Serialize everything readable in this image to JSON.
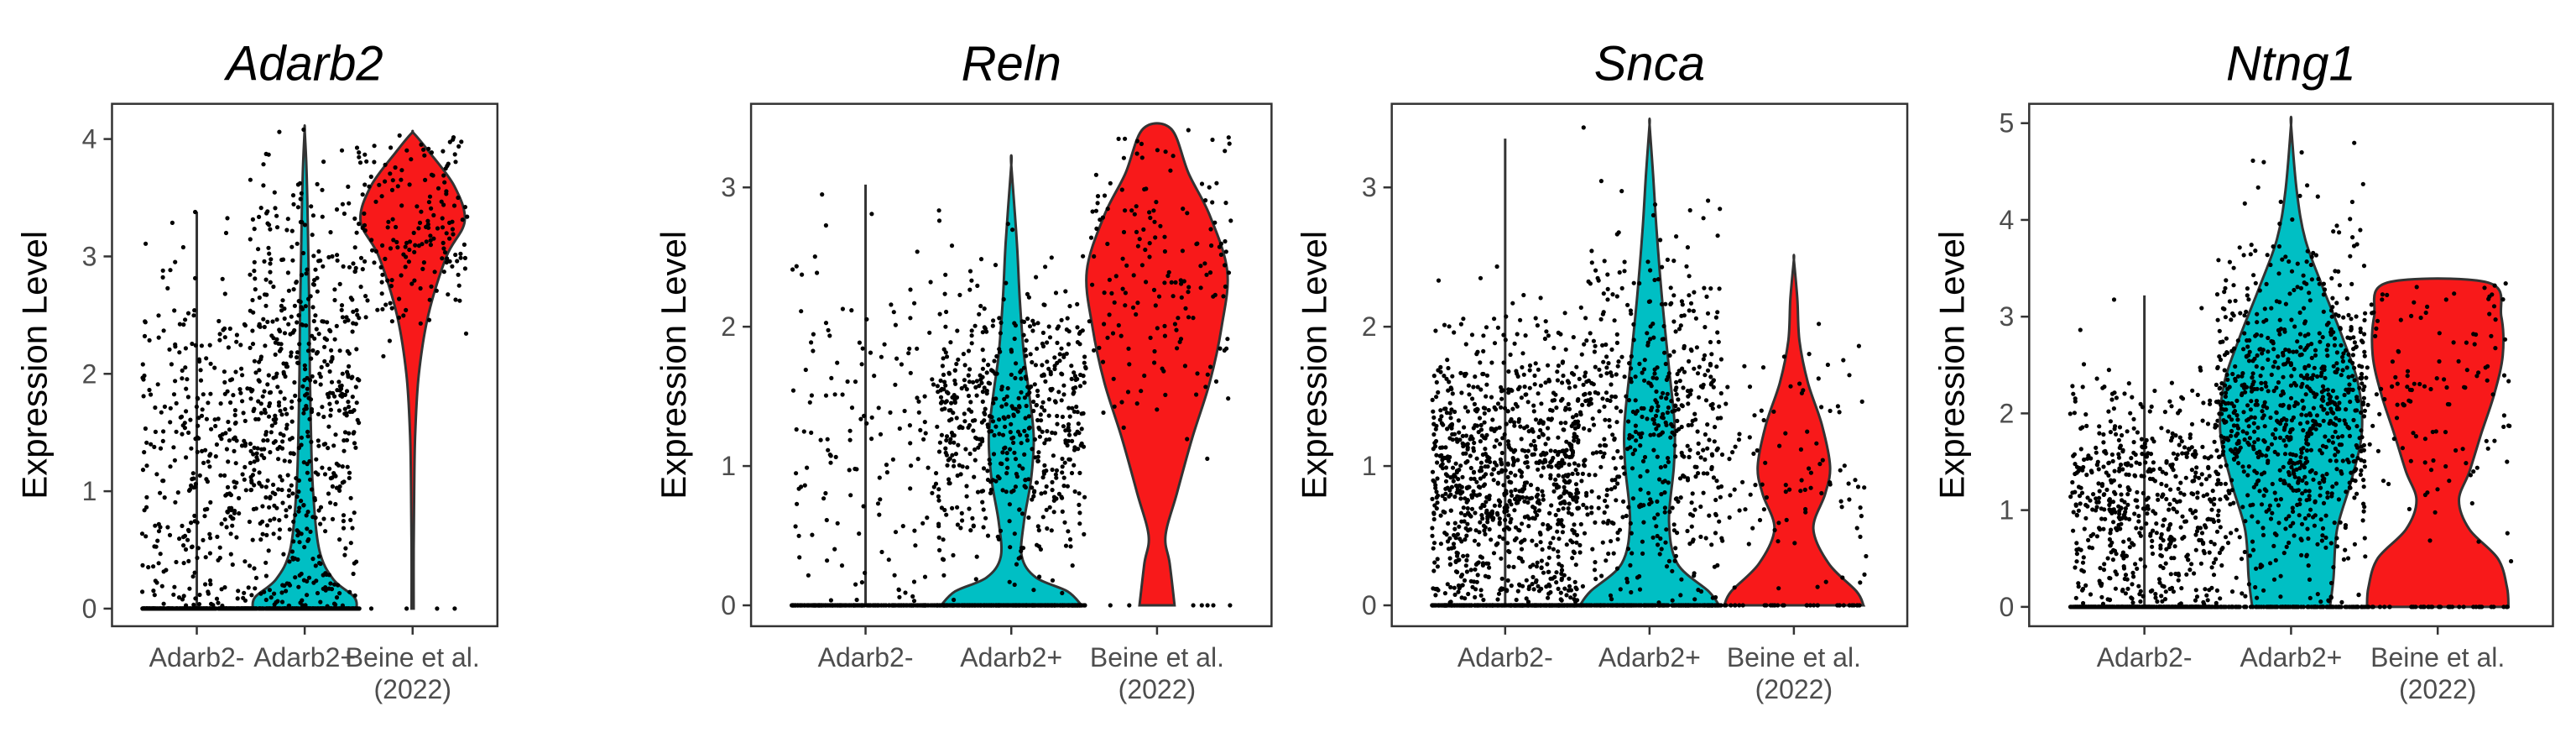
{
  "chart_data": [
    {
      "type": "violin",
      "title": "Adarb2",
      "ylabel": "Expression Level",
      "categories": [
        "Adarb2-",
        "Adarb2+",
        "Beine et al.\n(2022)"
      ],
      "ylim": [
        -0.15,
        4.3
      ],
      "yticks": [
        0,
        1,
        2,
        3,
        4
      ],
      "groups": [
        {
          "name": "Adarb2-",
          "color": null,
          "max": 3.38,
          "density_profile": [
            [
              0,
              0
            ],
            [
              0.1,
              0.02
            ],
            [
              0.3,
              0.04
            ],
            [
              0.8,
              0.03
            ],
            [
              1.5,
              0.02
            ],
            [
              2.5,
              0.01
            ],
            [
              3.38,
              0
            ]
          ],
          "zero_fraction": 0.55,
          "points": 700,
          "mean_nonzero": 1.3,
          "sd_nonzero": 0.8
        },
        {
          "name": "Adarb2+",
          "color": "#00BFC4",
          "max": 4.08,
          "density_profile": [
            [
              0,
              1.0
            ],
            [
              0.1,
              0.95
            ],
            [
              0.25,
              0.55
            ],
            [
              0.5,
              0.28
            ],
            [
              1.0,
              0.16
            ],
            [
              1.5,
              0.12
            ],
            [
              2.0,
              0.1
            ],
            [
              2.5,
              0.09
            ],
            [
              3.0,
              0.07
            ],
            [
              3.5,
              0.05
            ],
            [
              3.8,
              0.03
            ],
            [
              4.08,
              0
            ]
          ],
          "zero_fraction": 0.35,
          "points": 900,
          "mean_nonzero": 1.7,
          "sd_nonzero": 1.0
        },
        {
          "name": "Beine et al. (2022)",
          "color": "#F8191A",
          "max": 4.05,
          "density_profile": [
            [
              0,
              0.02
            ],
            [
              0.5,
              0.02
            ],
            [
              1.0,
              0.03
            ],
            [
              1.5,
              0.05
            ],
            [
              2.0,
              0.12
            ],
            [
              2.5,
              0.3
            ],
            [
              3.0,
              0.65
            ],
            [
              3.3,
              1.0
            ],
            [
              3.6,
              0.8
            ],
            [
              3.9,
              0.3
            ],
            [
              4.05,
              0.02
            ]
          ],
          "zero_fraction": 0.02,
          "points": 180,
          "mean_nonzero": 3.2,
          "sd_nonzero": 0.5
        }
      ]
    },
    {
      "type": "violin",
      "title": "Reln",
      "ylabel": "Expression Level",
      "categories": [
        "Adarb2-",
        "Adarb2+",
        "Beine et al.\n(2022)"
      ],
      "ylim": [
        -0.15,
        3.6
      ],
      "yticks": [
        0,
        1,
        2,
        3
      ],
      "groups": [
        {
          "name": "Adarb2-",
          "color": null,
          "max": 3.02,
          "density_profile": [
            [
              0,
              0
            ],
            [
              0.1,
              0.02
            ],
            [
              0.5,
              0.03
            ],
            [
              1.0,
              0.03
            ],
            [
              2.0,
              0.02
            ],
            [
              3.02,
              0
            ]
          ],
          "zero_fraction": 0.6,
          "points": 400,
          "mean_nonzero": 1.2,
          "sd_nonzero": 0.7
        },
        {
          "name": "Adarb2+",
          "color": "#00BFC4",
          "max": 3.16,
          "density_profile": [
            [
              0,
              1.0
            ],
            [
              0.1,
              0.8
            ],
            [
              0.2,
              0.35
            ],
            [
              0.35,
              0.15
            ],
            [
              0.6,
              0.18
            ],
            [
              0.9,
              0.28
            ],
            [
              1.2,
              0.32
            ],
            [
              1.5,
              0.26
            ],
            [
              1.8,
              0.18
            ],
            [
              2.2,
              0.12
            ],
            [
              2.6,
              0.08
            ],
            [
              3.16,
              0
            ]
          ],
          "zero_fraction": 0.35,
          "points": 900,
          "mean_nonzero": 1.3,
          "sd_nonzero": 0.5
        },
        {
          "name": "Beine et al. (2022)",
          "color": "#F8191A",
          "max": 3.42,
          "density_profile": [
            [
              0,
              0.25
            ],
            [
              0.3,
              0.18
            ],
            [
              0.5,
              0.12
            ],
            [
              0.8,
              0.28
            ],
            [
              1.2,
              0.5
            ],
            [
              1.6,
              0.75
            ],
            [
              2.0,
              0.92
            ],
            [
              2.4,
              1.0
            ],
            [
              2.8,
              0.75
            ],
            [
              3.1,
              0.45
            ],
            [
              3.42,
              0.2
            ]
          ],
          "zero_fraction": 0.04,
          "points": 180,
          "mean_nonzero": 2.3,
          "sd_nonzero": 0.6
        }
      ]
    },
    {
      "type": "violin",
      "title": "Snca",
      "ylabel": "Expression Level",
      "categories": [
        "Adarb2-",
        "Adarb2+",
        "Beine et al.\n(2022)"
      ],
      "ylim": [
        -0.15,
        3.6
      ],
      "yticks": [
        0,
        1,
        2,
        3
      ],
      "groups": [
        {
          "name": "Adarb2-",
          "color": null,
          "max": 3.35,
          "density_profile": [
            [
              0,
              0
            ],
            [
              0.5,
              0.03
            ],
            [
              1.0,
              0.03
            ],
            [
              2.0,
              0.02
            ],
            [
              3.35,
              0
            ]
          ],
          "zero_fraction": 0.3,
          "points": 1300,
          "mean_nonzero": 0.9,
          "sd_nonzero": 0.55
        },
        {
          "name": "Adarb2+",
          "color": "#00BFC4",
          "max": 3.45,
          "density_profile": [
            [
              0,
              1.0
            ],
            [
              0.1,
              0.85
            ],
            [
              0.3,
              0.4
            ],
            [
              0.6,
              0.28
            ],
            [
              1.0,
              0.35
            ],
            [
              1.3,
              0.36
            ],
            [
              1.7,
              0.28
            ],
            [
              2.2,
              0.18
            ],
            [
              2.7,
              0.1
            ],
            [
              3.1,
              0.05
            ],
            [
              3.45,
              0
            ]
          ],
          "zero_fraction": 0.3,
          "points": 800,
          "mean_nonzero": 1.3,
          "sd_nonzero": 0.65
        },
        {
          "name": "Beine et al. (2022)",
          "color": "#F8191A",
          "max": 2.48,
          "density_profile": [
            [
              0,
              1.0
            ],
            [
              0.1,
              0.9
            ],
            [
              0.3,
              0.5
            ],
            [
              0.55,
              0.28
            ],
            [
              0.8,
              0.45
            ],
            [
              1.0,
              0.52
            ],
            [
              1.3,
              0.4
            ],
            [
              1.6,
              0.2
            ],
            [
              1.9,
              0.08
            ],
            [
              2.2,
              0.05
            ],
            [
              2.48,
              0
            ]
          ],
          "zero_fraction": 0.25,
          "points": 130,
          "mean_nonzero": 0.95,
          "sd_nonzero": 0.45
        }
      ]
    },
    {
      "type": "violin",
      "title": "Ntng1",
      "ylabel": "Expression Level",
      "categories": [
        "Adarb2-",
        "Adarb2+",
        "Beine et al.\n(2022)"
      ],
      "ylim": [
        -0.2,
        5.2
      ],
      "yticks": [
        0,
        1,
        2,
        3,
        4,
        5
      ],
      "groups": [
        {
          "name": "Adarb2-",
          "color": null,
          "max": 3.22,
          "density_profile": [
            [
              0,
              0
            ],
            [
              0.5,
              0.03
            ],
            [
              1.0,
              0.03
            ],
            [
              2.0,
              0.02
            ],
            [
              3.22,
              0
            ]
          ],
          "zero_fraction": 0.35,
          "points": 900,
          "mean_nonzero": 1.1,
          "sd_nonzero": 0.6
        },
        {
          "name": "Adarb2+",
          "color": "#00BFC4",
          "max": 4.98,
          "density_profile": [
            [
              0,
              0.55
            ],
            [
              0.3,
              0.6
            ],
            [
              0.8,
              0.65
            ],
            [
              1.3,
              0.85
            ],
            [
              1.8,
              1.0
            ],
            [
              2.3,
              0.95
            ],
            [
              2.8,
              0.72
            ],
            [
              3.3,
              0.45
            ],
            [
              3.8,
              0.2
            ],
            [
              4.3,
              0.08
            ],
            [
              4.98,
              0
            ]
          ],
          "zero_fraction": 0.12,
          "points": 1000,
          "mean_nonzero": 2.0,
          "sd_nonzero": 0.9
        },
        {
          "name": "Beine et al. (2022)",
          "color": "#F8191A",
          "max": 3.35,
          "density_profile": [
            [
              0,
              1.0
            ],
            [
              0.2,
              0.98
            ],
            [
              0.5,
              0.85
            ],
            [
              0.8,
              0.45
            ],
            [
              1.1,
              0.3
            ],
            [
              1.4,
              0.45
            ],
            [
              1.8,
              0.62
            ],
            [
              2.2,
              0.8
            ],
            [
              2.6,
              0.92
            ],
            [
              3.0,
              0.9
            ],
            [
              3.35,
              0.72
            ]
          ],
          "zero_fraction": 0.3,
          "points": 170,
          "mean_nonzero": 2.2,
          "sd_nonzero": 0.8
        }
      ]
    }
  ]
}
